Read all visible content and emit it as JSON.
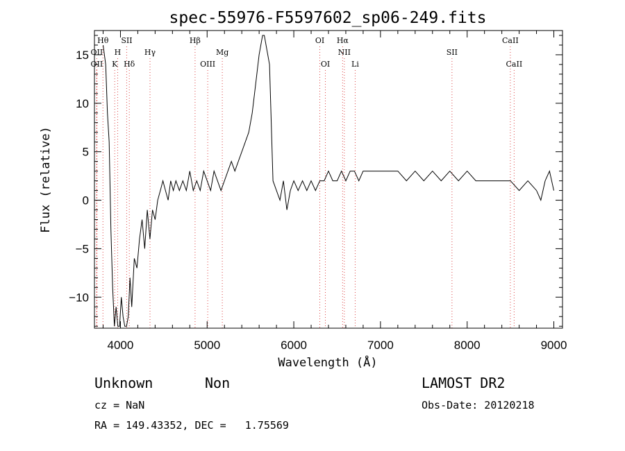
{
  "chart_data": {
    "type": "line",
    "title": "spec-55976-F5597602_sp06-249.fits",
    "xlabel": "Wavelength (Å)",
    "ylabel": "Flux (relative)",
    "xlim": [
      3700,
      9100
    ],
    "ylim": [
      -13.2,
      17.5
    ],
    "xticks": [
      4000,
      5000,
      6000,
      7000,
      8000,
      9000
    ],
    "yticks": [
      -10,
      -5,
      0,
      5,
      10,
      15
    ],
    "grid": false,
    "series": [
      {
        "name": "",
        "color": "#000000",
        "x": [
          3800,
          3830,
          3850,
          3870,
          3890,
          3910,
          3930,
          3950,
          3970,
          3990,
          4010,
          4030,
          4050,
          4070,
          4090,
          4110,
          4130,
          4160,
          4190,
          4220,
          4250,
          4280,
          4310,
          4340,
          4370,
          4400,
          4430,
          4460,
          4490,
          4520,
          4550,
          4580,
          4610,
          4640,
          4680,
          4720,
          4760,
          4800,
          4840,
          4880,
          4920,
          4960,
          5000,
          5040,
          5080,
          5120,
          5160,
          5200,
          5240,
          5280,
          5320,
          5360,
          5400,
          5440,
          5480,
          5520,
          5560,
          5600,
          5640,
          5660,
          5680,
          5720,
          5740,
          5760,
          5800,
          5840,
          5880,
          5920,
          5960,
          6000,
          6050,
          6100,
          6150,
          6200,
          6250,
          6300,
          6350,
          6400,
          6450,
          6500,
          6550,
          6600,
          6650,
          6700,
          6750,
          6800,
          6900,
          7000,
          7100,
          7200,
          7300,
          7400,
          7500,
          7600,
          7700,
          7800,
          7900,
          8000,
          8100,
          8200,
          8300,
          8400,
          8500,
          8600,
          8700,
          8800,
          8850,
          8900,
          8950,
          9000
        ],
        "y": [
          16,
          14,
          9,
          6,
          -3,
          -9,
          -13,
          -11,
          -13,
          -13,
          -10,
          -12,
          -13,
          -13,
          -12,
          -8,
          -11,
          -6,
          -7,
          -4,
          -2,
          -5,
          -1,
          -4,
          -1,
          -2,
          0,
          1,
          2,
          1,
          0,
          2,
          1,
          2,
          1,
          2,
          1,
          3,
          1,
          2,
          1,
          3,
          2,
          1,
          3,
          2,
          1,
          2,
          3,
          4,
          3,
          4,
          5,
          6,
          7,
          9,
          12,
          15,
          17,
          17,
          16,
          14,
          8,
          2,
          1,
          0,
          2,
          -1,
          1,
          2,
          1,
          2,
          1,
          2,
          1,
          2,
          2,
          3,
          2,
          2,
          3,
          2,
          3,
          3,
          2,
          3,
          3,
          3,
          3,
          3,
          2,
          3,
          2,
          3,
          2,
          3,
          2,
          3,
          2,
          2,
          2,
          2,
          2,
          1,
          2,
          1,
          0,
          2,
          3,
          1
        ]
      }
    ],
    "lines": [
      {
        "label": "Hθ",
        "wavelength": 3798,
        "row": 0
      },
      {
        "label": "OII",
        "wavelength": 3727,
        "row": 1
      },
      {
        "label": "OII",
        "wavelength": 3727,
        "row": 2
      },
      {
        "label": "SII",
        "wavelength": 4072,
        "row": 0
      },
      {
        "label": "H",
        "wavelength": 3968,
        "row": 1
      },
      {
        "label": "K",
        "wavelength": 3934,
        "row": 2
      },
      {
        "label": "Hδ",
        "wavelength": 4102,
        "row": 2
      },
      {
        "label": "Hγ",
        "wavelength": 4341,
        "row": 1
      },
      {
        "label": "Hβ",
        "wavelength": 4861,
        "row": 0
      },
      {
        "label": "Mg",
        "wavelength": 5175,
        "row": 1
      },
      {
        "label": "OIII",
        "wavelength": 5007,
        "row": 2
      },
      {
        "label": "OI",
        "wavelength": 6300,
        "row": 0
      },
      {
        "label": "Hα",
        "wavelength": 6563,
        "row": 0
      },
      {
        "label": "NII",
        "wavelength": 6583,
        "row": 1
      },
      {
        "label": "OI",
        "wavelength": 6364,
        "row": 2
      },
      {
        "label": "Li",
        "wavelength": 6708,
        "row": 2
      },
      {
        "label": "SII",
        "wavelength": 7825,
        "row": 1
      },
      {
        "label": "CaII",
        "wavelength": 8498,
        "row": 0
      },
      {
        "label": "CaII",
        "wavelength": 8542,
        "row": 2
      }
    ]
  },
  "footer": {
    "class": "Unknown",
    "subclass": "Non",
    "survey": "LAMOST DR2",
    "cz": "cz = NaN",
    "obs_date": "Obs-Date: 20120218",
    "coords": "RA = 149.43352, DEC =   1.75569"
  }
}
